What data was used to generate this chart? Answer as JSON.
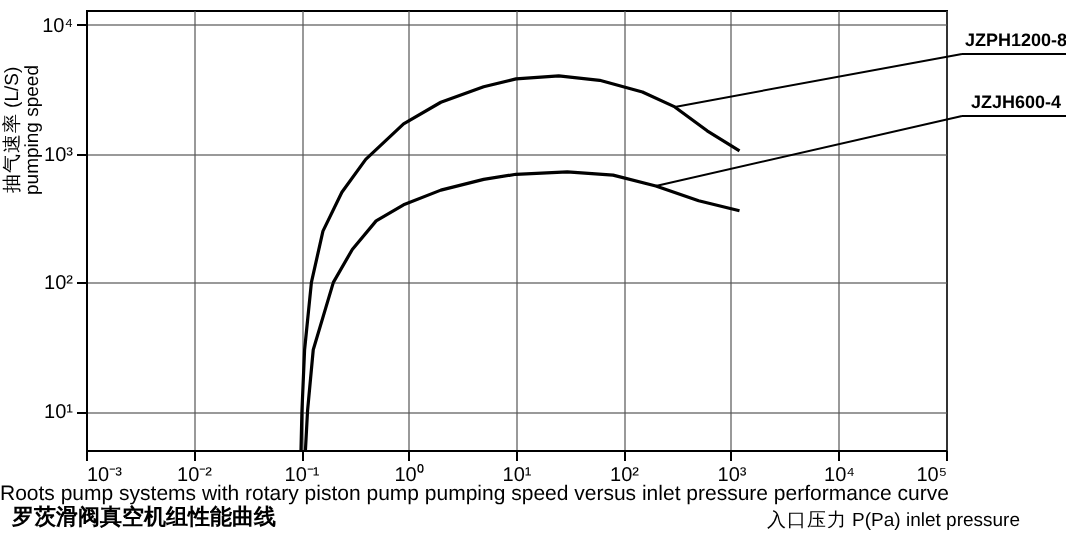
{
  "chart_data": {
    "type": "line",
    "title": "罗茨滑阀真空机组性能曲线",
    "subtitle": "Roots pump systems with rotary piston pump pumping speed versus inlet pressure performance curve",
    "xlabel": "入口压力 P(Pa)  inlet pressure",
    "ylabel": "抽气速率 (L/S) pumping speed",
    "log": "xy",
    "grid": true,
    "legend": false,
    "marker": "none",
    "line_style": "solid",
    "xlim": [
      0.001,
      100000
    ],
    "ylim": [
      5,
      13000
    ],
    "xticks": [
      {
        "value": 0.001,
        "label": "10⁻³"
      },
      {
        "value": 0.01,
        "label": "10⁻²"
      },
      {
        "value": 0.1,
        "label": "10⁻¹"
      },
      {
        "value": 1,
        "label": "10⁰"
      },
      {
        "value": 10,
        "label": "10¹"
      },
      {
        "value": 100,
        "label": "10²"
      },
      {
        "value": 1000,
        "label": "10³"
      },
      {
        "value": 10000,
        "label": "10⁴"
      },
      {
        "value": 100000,
        "label": "10⁵"
      }
    ],
    "yticks": [
      {
        "value": 10,
        "label": "10¹"
      },
      {
        "value": 100,
        "label": "10²"
      },
      {
        "value": 1000,
        "label": "10³"
      },
      {
        "value": 10000,
        "label": "10⁴"
      }
    ],
    "series": [
      {
        "name": "JZPH1200-8",
        "color": "#000000",
        "x": [
          0.1,
          0.102,
          0.108,
          0.125,
          0.16,
          0.24,
          0.4,
          0.9,
          2,
          5,
          10,
          25,
          60,
          150,
          300,
          600,
          1200
        ],
        "values": [
          5,
          10,
          30,
          100,
          250,
          500,
          900,
          1700,
          2500,
          3300,
          3800,
          4000,
          3700,
          3000,
          2300,
          1500,
          1050
        ]
      },
      {
        "name": "JZJH600-4",
        "color": "#000000",
        "x": [
          0.11,
          0.115,
          0.13,
          0.2,
          0.3,
          0.5,
          0.9,
          2,
          5,
          10,
          30,
          80,
          200,
          500,
          1200
        ],
        "values": [
          5,
          10,
          30,
          100,
          180,
          300,
          400,
          520,
          630,
          690,
          720,
          680,
          560,
          430,
          360
        ]
      }
    ]
  }
}
